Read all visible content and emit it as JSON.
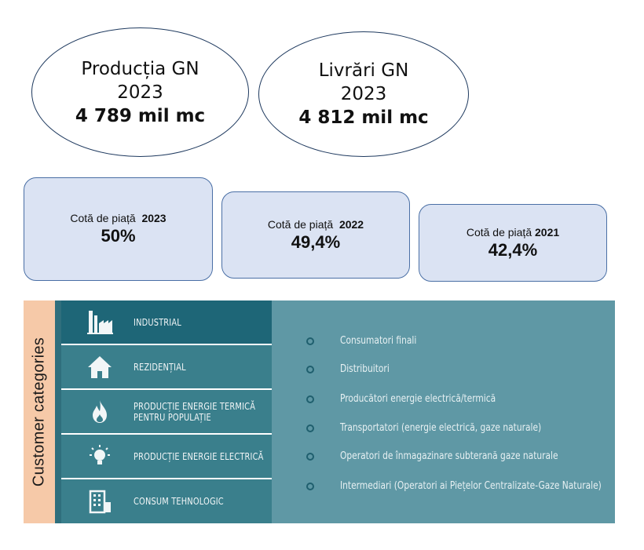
{
  "production": {
    "title": "Producția GN",
    "year": "2023",
    "value": "4 789 mil mc"
  },
  "deliveries": {
    "title": "Livrări GN",
    "year": "2023",
    "value": "4 812 mil mc"
  },
  "market_share": [
    {
      "label": "Cotă de piață",
      "year": "2023",
      "value": "50%"
    },
    {
      "label": "Cotă de piață",
      "year": "2022",
      "value": "49,4%"
    },
    {
      "label": "Cotă de piață",
      "year": "2021",
      "value": "42,4%"
    }
  ],
  "customer_categories": {
    "title": "Customer categories",
    "categories": [
      {
        "label": "INDUSTRIAL",
        "icon": "factory-icon"
      },
      {
        "label": "REZIDENȚIAL",
        "icon": "house-icon"
      },
      {
        "label_line1": "PRODUCȚIE ENERGIE TERMICĂ",
        "label_line2": "PENTRU POPULAȚIE",
        "icon": "flame-icon"
      },
      {
        "label": "PRODUCȚIE ENERGIE ELECTRICĂ",
        "icon": "lightbulb-icon"
      },
      {
        "label": "CONSUM TEHNOLOGIC",
        "icon": "building-icon"
      }
    ],
    "types": [
      "Consumatori finali",
      "Distribuitori",
      "Producători energie electrică/termică",
      "Transportatori (energie electrică, gaze naturale)",
      "Operatori de înmagazinare subterană gaze naturale",
      "Intermediari (Operatori ai Piețelor Centralizate-Gaze Naturale)"
    ]
  }
}
